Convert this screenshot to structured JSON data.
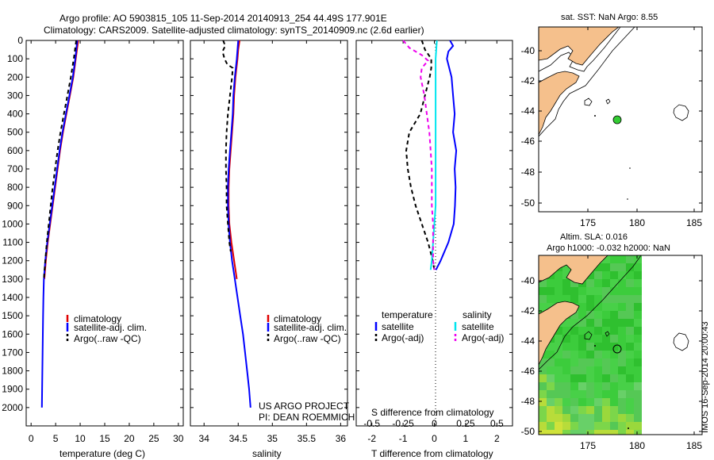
{
  "header": {
    "line1": "Argo profile: AO 5903815_105 11-Sep-2014 20140913_254 44.49S 177.901E",
    "line2": "Climatology: CARS2009. Satellite-adjusted climatology: synTS_20140909.nc (2.6d earlier)"
  },
  "colors": {
    "climatology": "#e00000",
    "satellite": "#0000ff",
    "argo": "#000000",
    "sat_salinity": "#00e5ee",
    "argo_salinity": "#ee00ee",
    "land": "#f5c08c",
    "sla_green": "#33cc33"
  },
  "chart_data": [
    {
      "type": "line",
      "id": "temperature",
      "xlabel": "temperature (deg C)",
      "ylabel": "",
      "xlim": [
        -1,
        31
      ],
      "ylim": [
        0,
        2100
      ],
      "x_ticks": [
        0,
        5,
        10,
        15,
        20,
        25,
        30
      ],
      "y_ticks": [
        0,
        100,
        200,
        300,
        400,
        500,
        600,
        700,
        800,
        900,
        1000,
        1100,
        1200,
        1300,
        1400,
        1500,
        1600,
        1700,
        1800,
        1900,
        2000
      ],
      "y_reversed": true,
      "legend": [
        "climatology",
        "satellite-adj. clim.",
        "Argo(..raw -QC)"
      ],
      "series": [
        {
          "name": "climatology",
          "color": "#e00000",
          "depth": [
            0,
            100,
            200,
            300,
            400,
            500,
            600,
            700,
            800,
            900,
            1000,
            1100,
            1200,
            1300
          ],
          "values": [
            9.6,
            9.1,
            8.6,
            7.9,
            7.2,
            6.5,
            5.9,
            5.4,
            4.9,
            4.4,
            3.9,
            3.4,
            3.0,
            2.7
          ]
        },
        {
          "name": "satellite-adj. clim.",
          "color": "#0000ff",
          "depth": [
            0,
            100,
            200,
            300,
            400,
            500,
            600,
            700,
            800,
            900,
            1000,
            1100,
            1200,
            1300,
            1400,
            1500,
            1600,
            1700,
            1800,
            1900,
            2000
          ],
          "values": [
            9.4,
            9.0,
            8.5,
            7.8,
            7.1,
            6.4,
            5.8,
            5.3,
            4.8,
            4.3,
            3.8,
            3.3,
            2.9,
            2.6,
            2.5,
            2.45,
            2.4,
            2.35,
            2.3,
            2.25,
            2.2
          ]
        },
        {
          "name": "Argo(..raw -QC)",
          "color": "#000000",
          "dash": true,
          "depth": [
            0,
            100,
            200,
            300,
            400,
            500,
            600,
            700,
            800,
            900,
            1000,
            1100,
            1200,
            1300
          ],
          "values": [
            9.2,
            8.7,
            8.1,
            7.4,
            6.7,
            6.0,
            5.4,
            4.9,
            4.4,
            4.0,
            3.6,
            3.2,
            2.9,
            2.6
          ]
        }
      ]
    },
    {
      "type": "line",
      "id": "salinity",
      "xlabel": "salinity",
      "xlim": [
        33.8,
        36.1
      ],
      "ylim": [
        0,
        2100
      ],
      "x_ticks": [
        34,
        34.5,
        35,
        35.5,
        36
      ],
      "y_reversed": true,
      "legend": [
        "climatology",
        "satellite-adj. clim.",
        "Argo(..raw -QC)"
      ],
      "annotation": [
        "US ARGO PROJECT",
        "PI: DEAN ROEMMICH"
      ],
      "series": [
        {
          "name": "climatology",
          "color": "#e00000",
          "depth": [
            0,
            50,
            100,
            200,
            300,
            400,
            500,
            600,
            700,
            800,
            900,
            1000,
            1100,
            1200,
            1300
          ],
          "values": [
            34.52,
            34.5,
            34.49,
            34.46,
            34.44,
            34.43,
            34.41,
            34.39,
            34.37,
            34.36,
            34.36,
            34.37,
            34.4,
            34.44,
            34.48
          ]
        },
        {
          "name": "satellite-adj. clim.",
          "color": "#0000ff",
          "depth": [
            0,
            50,
            100,
            200,
            300,
            400,
            500,
            600,
            700,
            800,
            900,
            1000,
            1100,
            1200,
            1300,
            1400,
            1500,
            1600,
            1700,
            1800,
            1900,
            2000
          ],
          "values": [
            34.5,
            34.49,
            34.48,
            34.45,
            34.43,
            34.42,
            34.4,
            34.38,
            34.36,
            34.35,
            34.35,
            34.36,
            34.38,
            34.41,
            34.45,
            34.49,
            34.53,
            34.57,
            34.6,
            34.63,
            34.66,
            34.68
          ]
        },
        {
          "name": "Argo(..raw -QC)",
          "color": "#000000",
          "dash": true,
          "depth": [
            0,
            30,
            60,
            100,
            130,
            150,
            200,
            300,
            400,
            500,
            600,
            700,
            800,
            900,
            1000,
            1100,
            1150
          ],
          "values": [
            34.28,
            34.31,
            34.27,
            34.3,
            34.34,
            34.42,
            34.41,
            34.38,
            34.35,
            34.33,
            34.32,
            34.32,
            34.33,
            34.33,
            34.35,
            34.37,
            34.39
          ]
        }
      ]
    },
    {
      "type": "line",
      "id": "difference",
      "xlabel": "T difference from climatology",
      "xlabel2": "S difference from climatology",
      "xlim": [
        -2.5,
        2.5
      ],
      "x_ticks": [
        -2,
        -1,
        0,
        1,
        2
      ],
      "x_ticks_s": [
        "-0.5",
        "-0.25",
        "0",
        "0.25",
        "0.5"
      ],
      "ylim": [
        0,
        2100
      ],
      "y_reversed": true,
      "legend_titles": [
        "temperature",
        "salinity"
      ],
      "legend": [
        "satellite",
        "Argo(-adj)",
        "satellite",
        "Argo(-adj)"
      ],
      "series": [
        {
          "name": "satellite",
          "quantity": "temperature",
          "color": "#0000ff",
          "depth": [
            0,
            30,
            60,
            100,
            200,
            300,
            400,
            500,
            600,
            700,
            800,
            900,
            1000,
            1100,
            1200,
            1250
          ],
          "values": [
            0.5,
            0.6,
            0.45,
            0.4,
            0.55,
            0.6,
            0.65,
            0.6,
            0.7,
            0.65,
            0.68,
            0.66,
            0.62,
            0.45,
            0.2,
            0.05
          ]
        },
        {
          "name": "Argo(-adj)",
          "quantity": "temperature",
          "color": "#000000",
          "dash": true,
          "depth": [
            0,
            50,
            100,
            150,
            200,
            300,
            400,
            500,
            600,
            700,
            800,
            900,
            1000,
            1100,
            1200,
            1250
          ],
          "values": [
            -0.4,
            -0.3,
            -0.1,
            -0.1,
            -0.15,
            -0.3,
            -0.45,
            -0.8,
            -0.9,
            -0.85,
            -0.75,
            -0.6,
            -0.4,
            -0.2,
            -0.05,
            0
          ]
        },
        {
          "name": "satellite",
          "quantity": "salinity",
          "color": "#00e5ee",
          "depth": [
            0,
            100,
            200,
            300,
            400,
            500,
            600,
            700,
            800,
            900,
            1000,
            1100,
            1200,
            1250
          ],
          "values": [
            0.02,
            0.01,
            0.01,
            0.01,
            0.01,
            0.01,
            0.01,
            0.01,
            0.01,
            0.01,
            0.0,
            -0.01,
            -0.02,
            -0.03
          ]
        },
        {
          "name": "Argo(-adj)",
          "quantity": "salinity",
          "color": "#ee00ee",
          "dash": true,
          "depth": [
            0,
            40,
            80,
            110,
            150,
            200,
            300,
            400,
            500,
            600,
            700,
            800,
            900,
            1000,
            1100,
            1200,
            1250
          ],
          "values": [
            -0.25,
            -0.2,
            -0.1,
            -0.05,
            -0.1,
            -0.11,
            -0.08,
            -0.06,
            -0.04,
            -0.03,
            -0.02,
            -0.02,
            -0.02,
            -0.01,
            -0.01,
            -0.01,
            0.0
          ]
        }
      ]
    }
  ],
  "map_sst": {
    "title": "sat. SST: NaN Argo: 8.55",
    "x_ticks": [
      "175",
      "180",
      "185"
    ],
    "y_ticks": [
      "-40",
      "-42",
      "-44",
      "-46",
      "-48",
      "-50"
    ]
  },
  "map_sla": {
    "title1": "Altim. SLA: 0.016",
    "title2": "Argo h1000: -0.032 h2000: NaN",
    "x_ticks": [
      "175",
      "180",
      "185"
    ],
    "y_ticks": [
      "-40",
      "-42",
      "-44",
      "-46",
      "-48",
      "-50"
    ]
  },
  "footer": {
    "imos_stamp": "IMOS 16-Sep-2014 20:00:43"
  }
}
